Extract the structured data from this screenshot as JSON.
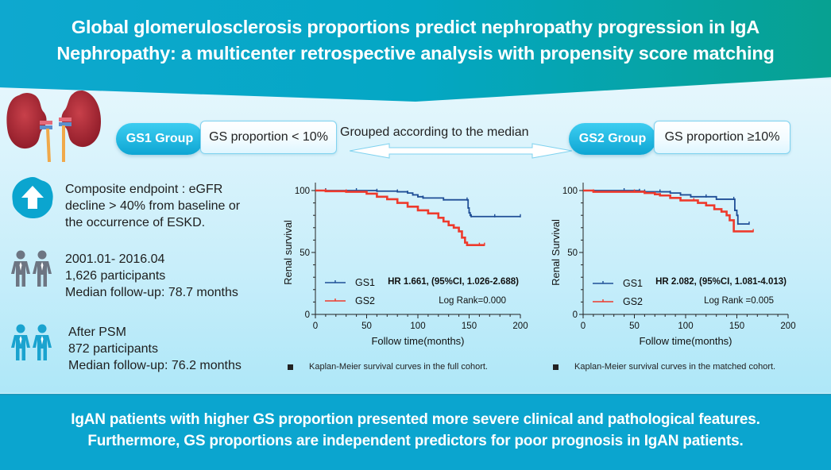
{
  "header": {
    "title_line1": "Global glomerulosclerosis proportions predict nephropathy progression in IgA",
    "title_line2": "Nephropathy: a multicenter retrospective analysis with propensity score matching"
  },
  "groups": {
    "gs1": {
      "label": "GS1 Group",
      "criterion": "GS proportion < 10%"
    },
    "gs2": {
      "label": "GS2 Group",
      "criterion": "GS proportion ≥10%"
    },
    "grouping_note": "Grouped according to the median"
  },
  "info": {
    "endpoint": [
      "Composite endpoint : eGFR",
      "decline > 40% from baseline or",
      "the occurrence of ESKD."
    ],
    "full_cohort": [
      "2001.01- 2016.04",
      "1,626 participants",
      "Median follow-up: 78.7 months"
    ],
    "matched_cohort": [
      "After PSM",
      "872 participants",
      "Median follow-up: 76.2 months"
    ]
  },
  "colors": {
    "gs1": "#1f4e96",
    "gs2": "#ee3a2c",
    "accent": "#0ba5cf",
    "icon_gray": "#6d7582",
    "icon_blue": "#1aa3cf"
  },
  "captions": {
    "full": "Kaplan-Meier survival curves in the full cohort.",
    "matched": "Kaplan-Meier survival curves in the matched cohort."
  },
  "chart_data": [
    {
      "type": "line",
      "title": "",
      "xlabel": "Follow time(months)",
      "ylabel": "Renal survival",
      "xlim": [
        0,
        200
      ],
      "ylim": [
        0,
        100
      ],
      "xticks": [
        0,
        50,
        100,
        150,
        200
      ],
      "yticks": [
        0,
        50,
        100
      ],
      "legend": "bottom-left",
      "annotations": [
        "HR 1.661, (95%CI, 1.026-2.688)",
        "Log Rank=0.000"
      ],
      "series": [
        {
          "name": "GS1",
          "x": [
            0,
            10,
            40,
            60,
            80,
            90,
            95,
            100,
            105,
            125,
            148,
            149,
            150,
            151,
            152,
            175,
            200
          ],
          "y": [
            100,
            100,
            100,
            99.5,
            99,
            98,
            96.5,
            95,
            94,
            92.5,
            92.5,
            86,
            82,
            80,
            79,
            79,
            79
          ]
        },
        {
          "name": "GS2",
          "x": [
            0,
            10,
            30,
            50,
            60,
            70,
            80,
            90,
            100,
            110,
            120,
            125,
            130,
            135,
            140,
            143,
            146,
            148,
            160,
            165
          ],
          "y": [
            100,
            99.5,
            99,
            97.5,
            95,
            93,
            90,
            87,
            84,
            81.5,
            78,
            75,
            72,
            70,
            67,
            62,
            58,
            56,
            56,
            56
          ]
        }
      ]
    },
    {
      "type": "line",
      "title": "",
      "xlabel": "Follow time(months)",
      "ylabel": "Renal Survival",
      "xlim": [
        0,
        200
      ],
      "ylim": [
        0,
        100
      ],
      "xticks": [
        0,
        50,
        100,
        150,
        200
      ],
      "yticks": [
        0,
        50,
        100
      ],
      "legend": "bottom-left",
      "annotations": [
        "HR 2.082, (95%CI, 1.081-4.013)",
        "Log Rank =0.005"
      ],
      "series": [
        {
          "name": "GS1",
          "x": [
            0,
            40,
            55,
            60,
            75,
            85,
            95,
            105,
            120,
            130,
            147,
            148,
            150,
            151,
            162
          ],
          "y": [
            100,
            100,
            99.5,
            99,
            99,
            98,
            96.5,
            95,
            95,
            93,
            93,
            84,
            80,
            73,
            73
          ]
        },
        {
          "name": "GS2",
          "x": [
            0,
            10,
            50,
            60,
            70,
            75,
            85,
            95,
            108,
            112,
            120,
            128,
            135,
            140,
            143,
            147,
            166
          ],
          "y": [
            100,
            99,
            99,
            98,
            97,
            96,
            94,
            92,
            92,
            90,
            88,
            85,
            83,
            80,
            76,
            67,
            67
          ]
        }
      ]
    }
  ],
  "footer": {
    "line1": "IgAN patients with higher GS proportion presented more severe clinical and pathological features.",
    "line2": "Furthermore, GS proportions are independent predictors for poor prognosis in IgAN patients."
  }
}
